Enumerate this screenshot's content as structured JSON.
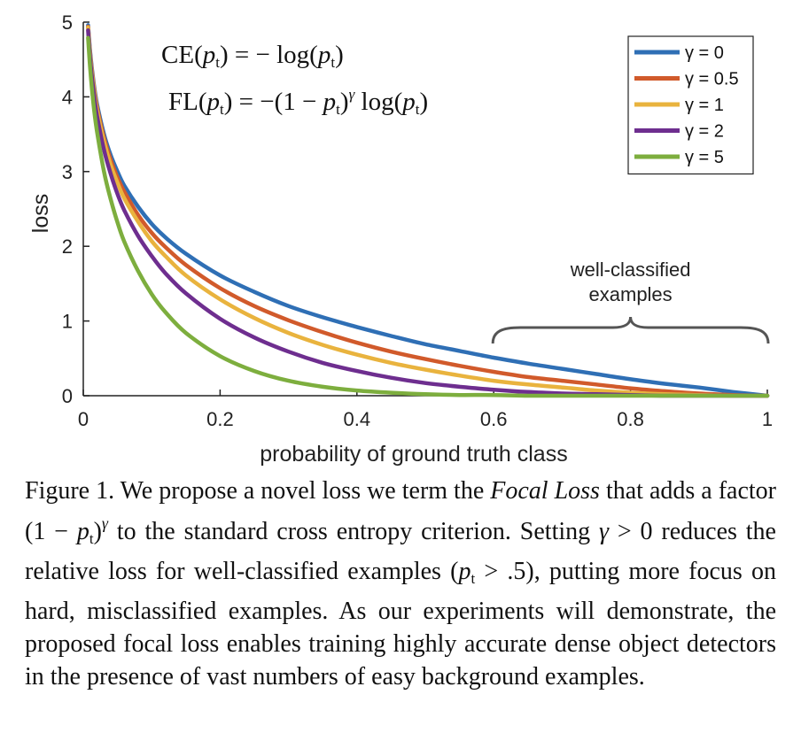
{
  "chart_data": {
    "type": "line",
    "xlabel": "probability of ground truth class",
    "ylabel": "loss",
    "xlim": [
      0,
      1
    ],
    "ylim": [
      0,
      5
    ],
    "xticks": [
      0,
      0.2,
      0.4,
      0.6,
      0.8,
      1
    ],
    "xtick_labels": [
      "0",
      "0.2",
      "0.4",
      "0.6",
      "0.8",
      "1"
    ],
    "yticks": [
      0,
      1,
      2,
      3,
      4,
      5
    ],
    "ytick_labels": [
      "0",
      "1",
      "2",
      "3",
      "4",
      "5"
    ],
    "legend_position": "top-right",
    "x": [
      0.007,
      0.01,
      0.015,
      0.02,
      0.03,
      0.04,
      0.05,
      0.06,
      0.08,
      0.1,
      0.12,
      0.15,
      0.2,
      0.25,
      0.3,
      0.35,
      0.4,
      0.45,
      0.5,
      0.55,
      0.6,
      0.65,
      0.7,
      0.75,
      0.8,
      0.85,
      0.9,
      0.95,
      1.0
    ],
    "series": [
      {
        "name": "γ = 0",
        "gamma": 0,
        "color": "#2f6fb5",
        "values": [
          4.96,
          4.61,
          4.2,
          3.91,
          3.51,
          3.22,
          3.0,
          2.81,
          2.53,
          2.3,
          2.12,
          1.9,
          1.61,
          1.39,
          1.2,
          1.05,
          0.92,
          0.8,
          0.69,
          0.6,
          0.51,
          0.43,
          0.36,
          0.29,
          0.22,
          0.16,
          0.11,
          0.05,
          0.0
        ]
      },
      {
        "name": "γ = 0.5",
        "gamma": 0.5,
        "color": "#d15a2b",
        "values": [
          4.94,
          4.58,
          4.17,
          3.87,
          3.46,
          3.16,
          2.92,
          2.73,
          2.42,
          2.18,
          1.99,
          1.75,
          1.44,
          1.2,
          1.01,
          0.85,
          0.71,
          0.59,
          0.49,
          0.4,
          0.32,
          0.25,
          0.2,
          0.15,
          0.1,
          0.06,
          0.03,
          0.01,
          0.0
        ]
      },
      {
        "name": "γ = 1",
        "gamma": 1,
        "color": "#e9b33e",
        "values": [
          4.93,
          4.56,
          4.14,
          3.83,
          3.41,
          3.09,
          2.85,
          2.64,
          2.33,
          2.07,
          1.87,
          1.61,
          1.29,
          1.04,
          0.84,
          0.68,
          0.55,
          0.44,
          0.35,
          0.27,
          0.2,
          0.15,
          0.11,
          0.07,
          0.04,
          0.02,
          0.01,
          0.0,
          0.0
        ]
      },
      {
        "name": "γ = 2",
        "gamma": 2,
        "color": "#6e2e8f",
        "values": [
          4.89,
          4.51,
          4.07,
          3.75,
          3.3,
          2.97,
          2.7,
          2.48,
          2.14,
          1.87,
          1.64,
          1.37,
          1.03,
          0.78,
          0.59,
          0.44,
          0.33,
          0.24,
          0.17,
          0.12,
          0.08,
          0.05,
          0.03,
          0.02,
          0.01,
          0.0,
          0.0,
          0.0,
          0.0
        ]
      },
      {
        "name": "γ = 5",
        "gamma": 5,
        "color": "#7dae3e",
        "values": [
          4.79,
          4.39,
          3.89,
          3.54,
          3.01,
          2.63,
          2.32,
          2.06,
          1.67,
          1.36,
          1.12,
          0.84,
          0.53,
          0.33,
          0.2,
          0.12,
          0.07,
          0.04,
          0.02,
          0.01,
          0.01,
          0.0,
          0.0,
          0.0,
          0.0,
          0.0,
          0.0,
          0.0,
          0.0
        ]
      }
    ],
    "annotation": {
      "label_line1": "well-classified",
      "label_line2": "examples",
      "x_range": [
        0.6,
        1.0
      ]
    }
  },
  "formulas": {
    "ce": {
      "lhs": "CE",
      "arg": "p",
      "sub": "t",
      "rhs": "= − log(",
      "close": ")"
    },
    "fl": {
      "lhs": "FL",
      "arg": "p",
      "sub": "t",
      "rhs1": "= −(1 − ",
      "sup": "γ",
      "rhs2": " log(",
      "close": ")"
    }
  },
  "caption": {
    "text_1": "Figure 1. We propose a novel loss we term the ",
    "focal_loss": "Focal Loss",
    "text_2": " that adds a factor ",
    "factor_open": "(1 − ",
    "p": "p",
    "t": "t",
    "factor_close": ")",
    "gamma": "γ",
    "text_3": " to the standard cross entropy criterion. Setting ",
    "text_4": " > 0 reduces the relative loss for well-classified examples (",
    "text_5": " > .5), putting more focus on hard, misclassified examples. As our experiments will demonstrate, the proposed focal loss enables training highly accurate dense object detectors in the presence of vast numbers of easy background examples."
  }
}
